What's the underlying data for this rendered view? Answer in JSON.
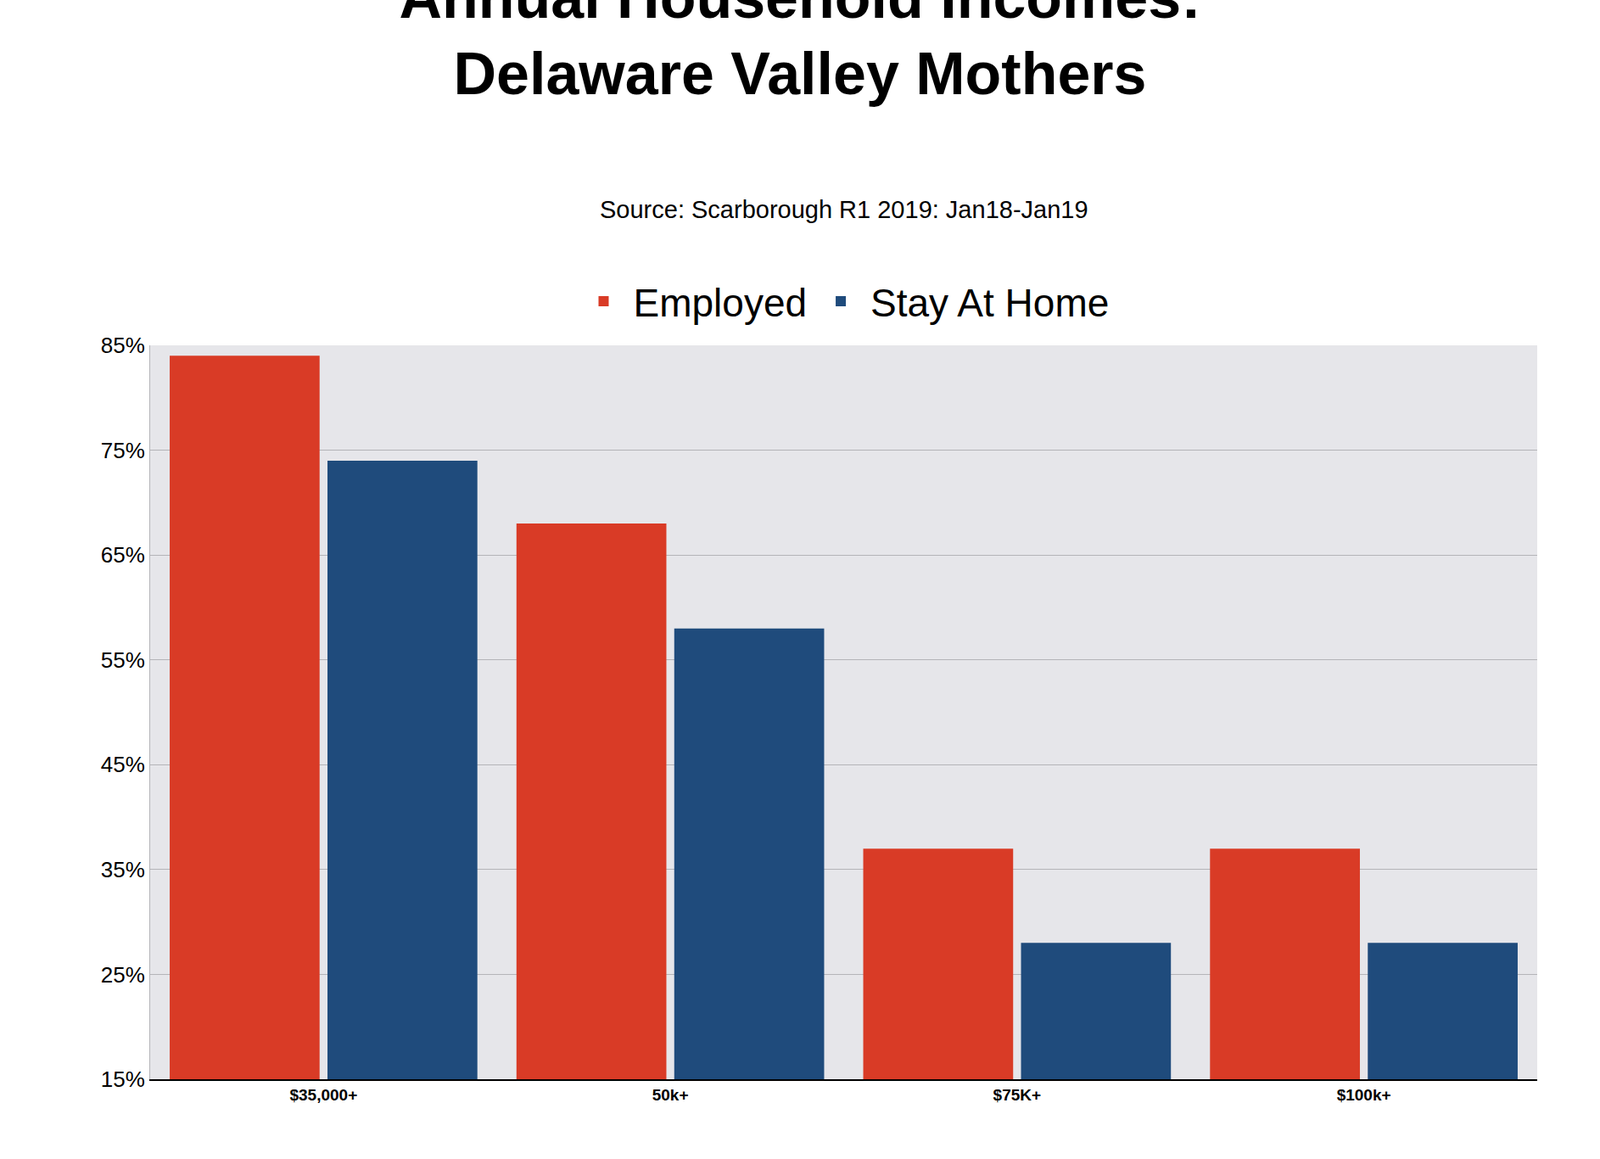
{
  "chart_data": {
    "type": "bar",
    "title": "Annual Household Incomes: Delaware Valley Mothers",
    "subtitle": "Source: Scarborough R1 2019: Jan18-Jan19",
    "categories": [
      "$35,000+",
      "50k+",
      "$75K+",
      "$100k+"
    ],
    "series": [
      {
        "name": "Employed",
        "color": "#d93b26",
        "values": [
          84,
          68,
          37,
          37
        ]
      },
      {
        "name": "Stay At Home",
        "color": "#1f4b7c",
        "values": [
          74,
          58,
          28,
          28
        ]
      }
    ],
    "ylim": [
      15,
      85
    ],
    "yticks": [
      {
        "value": 15,
        "label": "15%"
      },
      {
        "value": 25,
        "label": "25%"
      },
      {
        "value": 35,
        "label": "35%"
      },
      {
        "value": 45,
        "label": "45%"
      },
      {
        "value": 55,
        "label": "55%"
      },
      {
        "value": 65,
        "label": "65%"
      },
      {
        "value": 75,
        "label": "75%"
      },
      {
        "value": 85,
        "label": "85%"
      }
    ],
    "grid": true,
    "legend": "top"
  }
}
